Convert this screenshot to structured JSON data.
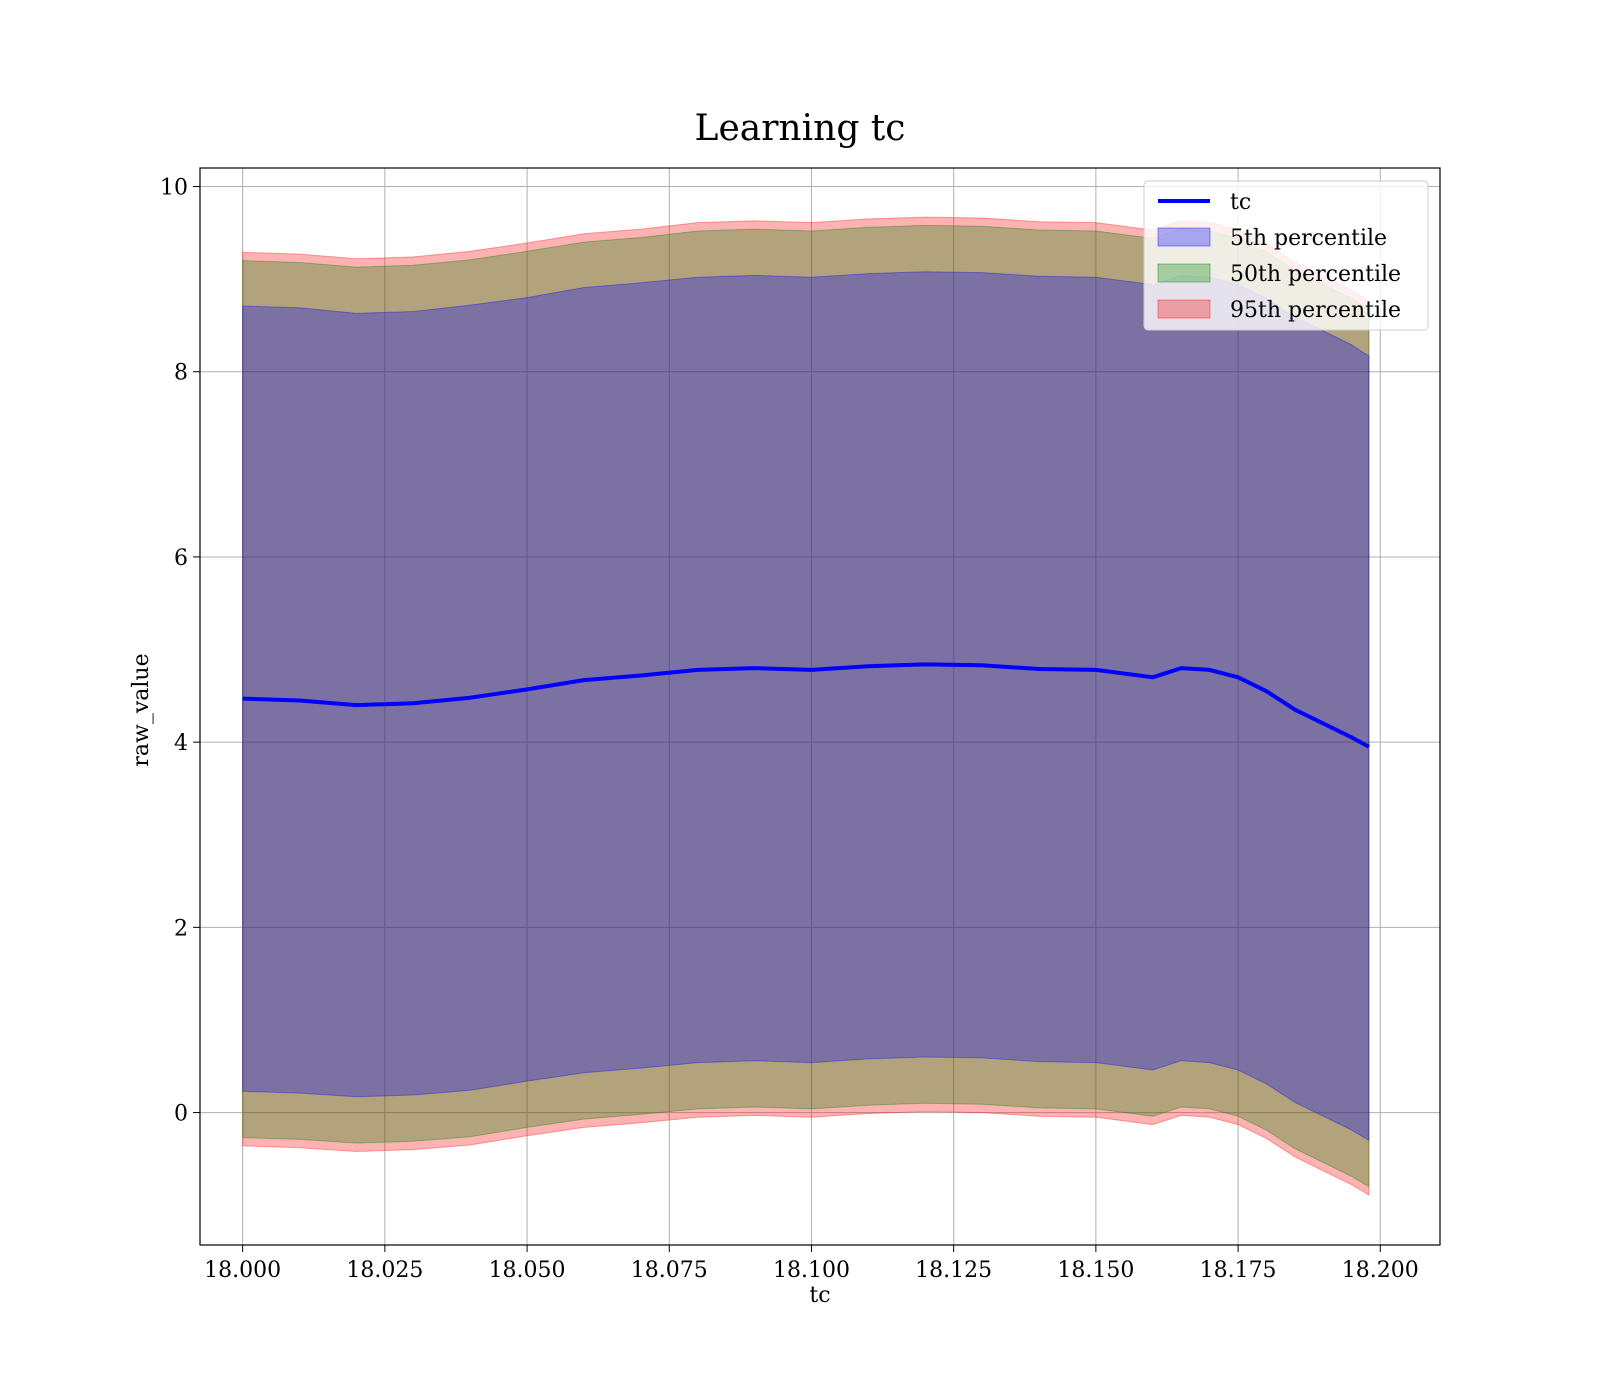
{
  "chart_data": {
    "type": "area",
    "title": "Learning tc",
    "xlabel": "tc",
    "ylabel": "raw_value",
    "xlim": [
      17.9925,
      18.2105
    ],
    "ylim": [
      -1.43,
      10.2
    ],
    "xticks": [
      18.0,
      18.025,
      18.05,
      18.075,
      18.1,
      18.125,
      18.15,
      18.175,
      18.2
    ],
    "xtick_labels": [
      "18.000",
      "18.025",
      "18.050",
      "18.075",
      "18.100",
      "18.125",
      "18.150",
      "18.175",
      "18.200"
    ],
    "yticks": [
      0,
      2,
      4,
      6,
      8,
      10
    ],
    "ytick_labels": [
      "0",
      "2",
      "4",
      "6",
      "8",
      "10"
    ],
    "grid": true,
    "legend_position": "top-right",
    "x": [
      18.0,
      18.01,
      18.02,
      18.03,
      18.04,
      18.05,
      18.06,
      18.07,
      18.08,
      18.09,
      18.1,
      18.11,
      18.12,
      18.13,
      18.14,
      18.15,
      18.16,
      18.165,
      18.17,
      18.175,
      18.18,
      18.185,
      18.19,
      18.195,
      18.198
    ],
    "series": [
      {
        "name": "tc",
        "kind": "line",
        "color": "#0000ff",
        "values": [
          4.47,
          4.45,
          4.4,
          4.42,
          4.48,
          4.57,
          4.67,
          4.72,
          4.78,
          4.8,
          4.78,
          4.82,
          4.84,
          4.83,
          4.79,
          4.78,
          4.7,
          4.8,
          4.78,
          4.7,
          4.55,
          4.35,
          4.2,
          4.05,
          3.95
        ]
      },
      {
        "name": "5th percentile",
        "kind": "band",
        "color": "#0000ff",
        "lower": [
          0.23,
          0.21,
          0.17,
          0.19,
          0.24,
          0.34,
          0.43,
          0.48,
          0.54,
          0.56,
          0.54,
          0.58,
          0.6,
          0.59,
          0.55,
          0.54,
          0.46,
          0.56,
          0.54,
          0.46,
          0.31,
          0.11,
          -0.04,
          -0.19,
          -0.3
        ],
        "upper": [
          8.71,
          8.69,
          8.63,
          8.65,
          8.72,
          8.8,
          8.91,
          8.96,
          9.02,
          9.04,
          9.02,
          9.06,
          9.08,
          9.07,
          9.03,
          9.02,
          8.94,
          9.04,
          9.02,
          8.94,
          8.79,
          8.59,
          8.44,
          8.29,
          8.17
        ]
      },
      {
        "name": "50th percentile",
        "kind": "band",
        "color": "#008000",
        "lower": [
          -0.27,
          -0.29,
          -0.33,
          -0.31,
          -0.26,
          -0.16,
          -0.07,
          -0.02,
          0.04,
          0.06,
          0.04,
          0.08,
          0.1,
          0.09,
          0.05,
          0.04,
          -0.04,
          0.06,
          0.04,
          -0.04,
          -0.19,
          -0.39,
          -0.54,
          -0.69,
          -0.8
        ],
        "upper": [
          9.2,
          9.18,
          9.13,
          9.15,
          9.21,
          9.3,
          9.4,
          9.45,
          9.52,
          9.54,
          9.52,
          9.56,
          9.58,
          9.57,
          9.53,
          9.52,
          9.44,
          9.54,
          9.52,
          9.44,
          9.29,
          9.09,
          8.94,
          8.79,
          8.67
        ]
      },
      {
        "name": "95th percentile",
        "kind": "band",
        "color": "#ff0000",
        "lower": [
          -0.36,
          -0.38,
          -0.42,
          -0.4,
          -0.35,
          -0.25,
          -0.16,
          -0.11,
          -0.05,
          -0.03,
          -0.05,
          -0.01,
          0.01,
          0.0,
          -0.04,
          -0.05,
          -0.13,
          -0.03,
          -0.05,
          -0.13,
          -0.28,
          -0.48,
          -0.63,
          -0.78,
          -0.89
        ],
        "upper": [
          9.29,
          9.27,
          9.22,
          9.24,
          9.3,
          9.39,
          9.49,
          9.54,
          9.61,
          9.63,
          9.61,
          9.65,
          9.67,
          9.66,
          9.62,
          9.61,
          9.53,
          9.63,
          9.61,
          9.53,
          9.38,
          9.18,
          9.03,
          8.88,
          8.76
        ]
      }
    ]
  }
}
